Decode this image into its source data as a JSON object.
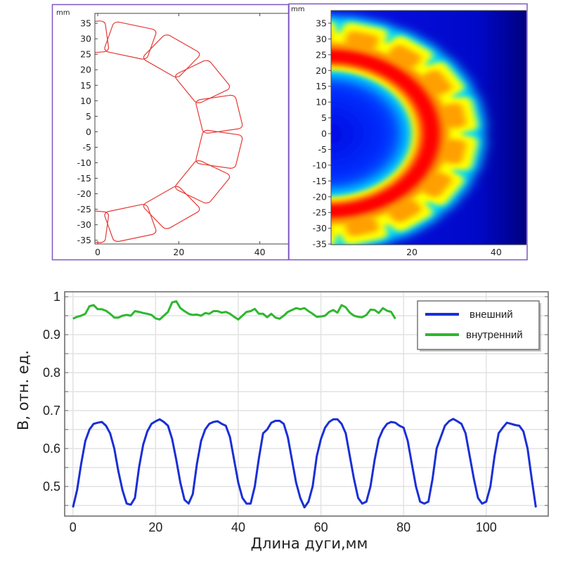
{
  "chart_data": [
    {
      "type": "diagram",
      "unit_label": "mm",
      "xticks": [
        0,
        20,
        40
      ],
      "yticks": [
        35,
        30,
        25,
        20,
        15,
        10,
        5,
        0,
        -5,
        -10,
        -15,
        -20,
        -25,
        -30,
        -35
      ],
      "xlim": [
        -0.7,
        47
      ],
      "ylim": [
        -36.2,
        38.2
      ],
      "coil_color": "#e53935",
      "coils": {
        "center_radius_mm": 30.5,
        "radial_size_mm": 10,
        "tangential_size_mm": 11,
        "angles_deg": [
          -96,
          -74.7,
          -53.3,
          -32,
          -10.7,
          10.7,
          32,
          53.3,
          74.7,
          96
        ]
      }
    },
    {
      "type": "heatmap",
      "unit_label": "mm",
      "xticks": [
        20,
        40
      ],
      "yticks": [
        35,
        30,
        25,
        20,
        15,
        10,
        5,
        0,
        -5,
        -10,
        -15,
        -20,
        -25,
        -30,
        -35
      ],
      "xlim": [
        0.8,
        47.2
      ],
      "ylim": [
        -35.2,
        39
      ],
      "colormap": [
        "#00007a",
        "#0000ff",
        "#00e5ff",
        "#ffff00",
        "#ff8c00",
        "#ff0000"
      ]
    },
    {
      "type": "line",
      "xlabel": "Длина дуги,мм",
      "ylabel": "B, отн. ед.",
      "xlim": [
        -2,
        115
      ],
      "ylim": [
        0.422,
        1.013
      ],
      "xticks": [
        0,
        20,
        40,
        60,
        80,
        100
      ],
      "yticks": [
        0.5,
        0.6,
        0.7,
        0.8,
        0.9,
        1
      ],
      "ygrid_step": 0.05,
      "grid": true,
      "legend": "top-right",
      "series": [
        {
          "name": "внешний",
          "color": "#1a2fd6",
          "x_start": 0,
          "x_step": 1,
          "y": [
            0.445,
            0.49,
            0.56,
            0.62,
            0.65,
            0.665,
            0.668,
            0.67,
            0.66,
            0.64,
            0.6,
            0.54,
            0.49,
            0.455,
            0.452,
            0.47,
            0.55,
            0.61,
            0.645,
            0.665,
            0.672,
            0.677,
            0.67,
            0.66,
            0.625,
            0.57,
            0.51,
            0.465,
            0.455,
            0.48,
            0.56,
            0.62,
            0.65,
            0.665,
            0.67,
            0.672,
            0.665,
            0.66,
            0.63,
            0.57,
            0.51,
            0.47,
            0.455,
            0.455,
            0.5,
            0.575,
            0.64,
            0.65,
            0.668,
            0.673,
            0.673,
            0.665,
            0.63,
            0.57,
            0.51,
            0.47,
            0.445,
            0.46,
            0.5,
            0.58,
            0.625,
            0.655,
            0.67,
            0.677,
            0.677,
            0.665,
            0.64,
            0.58,
            0.52,
            0.47,
            0.455,
            0.46,
            0.5,
            0.57,
            0.625,
            0.65,
            0.665,
            0.67,
            0.668,
            0.66,
            0.655,
            0.62,
            0.56,
            0.5,
            0.46,
            0.455,
            0.46,
            0.52,
            0.6,
            0.63,
            0.66,
            0.672,
            0.678,
            0.672,
            0.665,
            0.64,
            0.58,
            0.52,
            0.47,
            0.455,
            0.46,
            0.5,
            0.58,
            0.64,
            0.655,
            0.668,
            0.665,
            0.662,
            0.66,
            0.645,
            0.6,
            0.52,
            0.445
          ]
        },
        {
          "name": "внутренний",
          "color": "#2eb82e",
          "x_start": 0,
          "x_step": 1,
          "y": [
            0.942,
            0.947,
            0.95,
            0.955,
            0.975,
            0.978,
            0.967,
            0.967,
            0.963,
            0.955,
            0.945,
            0.945,
            0.95,
            0.952,
            0.95,
            0.962,
            0.96,
            0.957,
            0.955,
            0.952,
            0.943,
            0.94,
            0.95,
            0.96,
            0.985,
            0.988,
            0.97,
            0.962,
            0.955,
            0.952,
            0.953,
            0.95,
            0.957,
            0.955,
            0.962,
            0.962,
            0.958,
            0.96,
            0.955,
            0.947,
            0.94,
            0.95,
            0.96,
            0.962,
            0.968,
            0.955,
            0.955,
            0.946,
            0.955,
            0.945,
            0.942,
            0.95,
            0.96,
            0.965,
            0.97,
            0.967,
            0.97,
            0.962,
            0.955,
            0.947,
            0.948,
            0.95,
            0.96,
            0.965,
            0.958,
            0.978,
            0.972,
            0.958,
            0.95,
            0.947,
            0.946,
            0.952,
            0.966,
            0.965,
            0.957,
            0.97,
            0.963,
            0.96,
            0.942
          ]
        }
      ]
    }
  ]
}
